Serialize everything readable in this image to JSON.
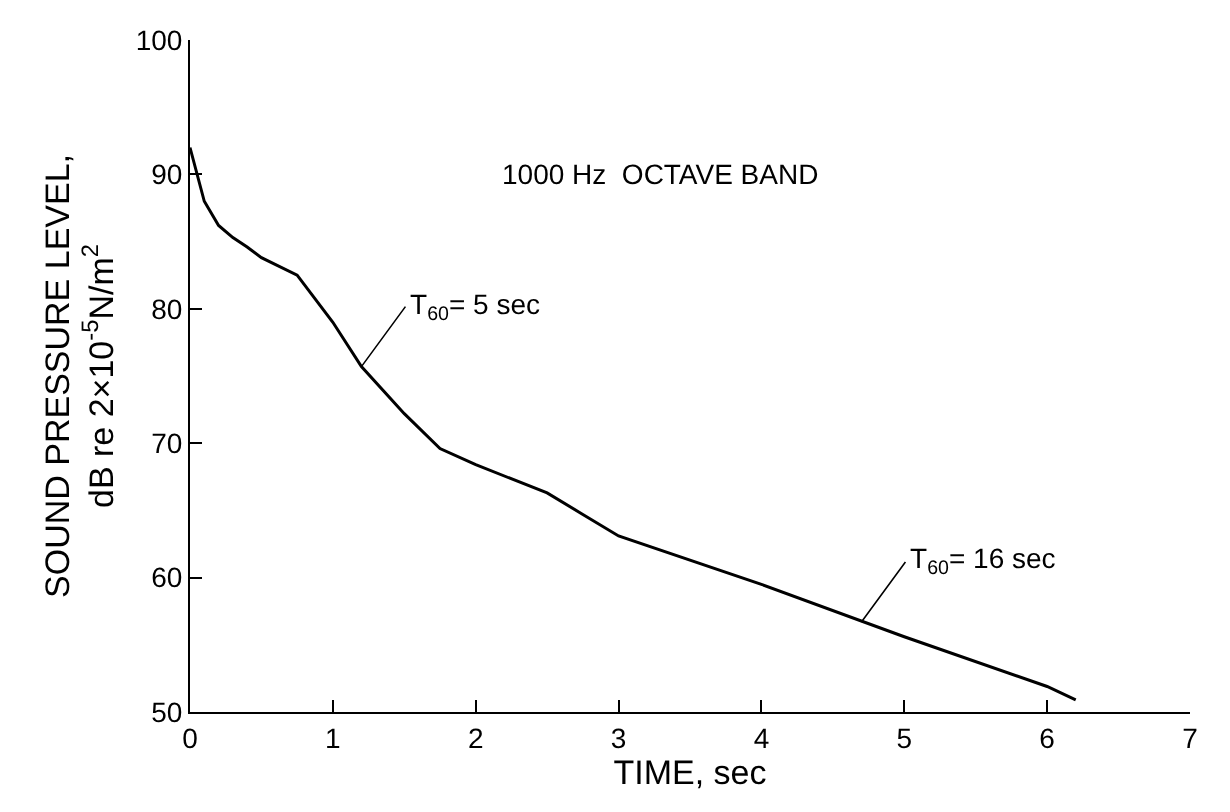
{
  "chart_data": {
    "type": "line",
    "xlabel": "TIME, sec",
    "ylabel": "SOUND PRESSURE LEVEL,\ndB re 2×10$^{-5}$N/m$^{2}$",
    "x": [
      0,
      0.1,
      0.2,
      0.3,
      0.4,
      0.5,
      0.75,
      1.0,
      1.2,
      1.5,
      1.75,
      2.0,
      2.5,
      2.75,
      3.0,
      4.0,
      5.0,
      6.0,
      6.2
    ],
    "series": [
      {
        "color": "#000000",
        "values": [
          92,
          88,
          86.2,
          85.3,
          84.6,
          83.8,
          82.5,
          79.0,
          75.7,
          72.2,
          69.6,
          68.4,
          66.3,
          64.7,
          63.1,
          59.5,
          55.6,
          51.9,
          50.9
        ]
      }
    ],
    "xlim": [
      0,
      7
    ],
    "xticks": [
      0,
      1,
      2,
      3,
      4,
      5,
      6,
      7
    ],
    "ylim": [
      50,
      100
    ],
    "yticks": [
      50,
      60,
      70,
      80,
      90,
      100
    ],
    "annotations": [
      "1000 Hz  OCTAVE BAND",
      {
        "text": "T$_{60}$= 5 sec",
        "x": 1.2,
        "y": 75.7
      },
      {
        "text": "T$_{60}$= 16 sec",
        "x": 4.7,
        "y": 56.7
      }
    ],
    "marker": "none",
    "line_style": "solid"
  }
}
